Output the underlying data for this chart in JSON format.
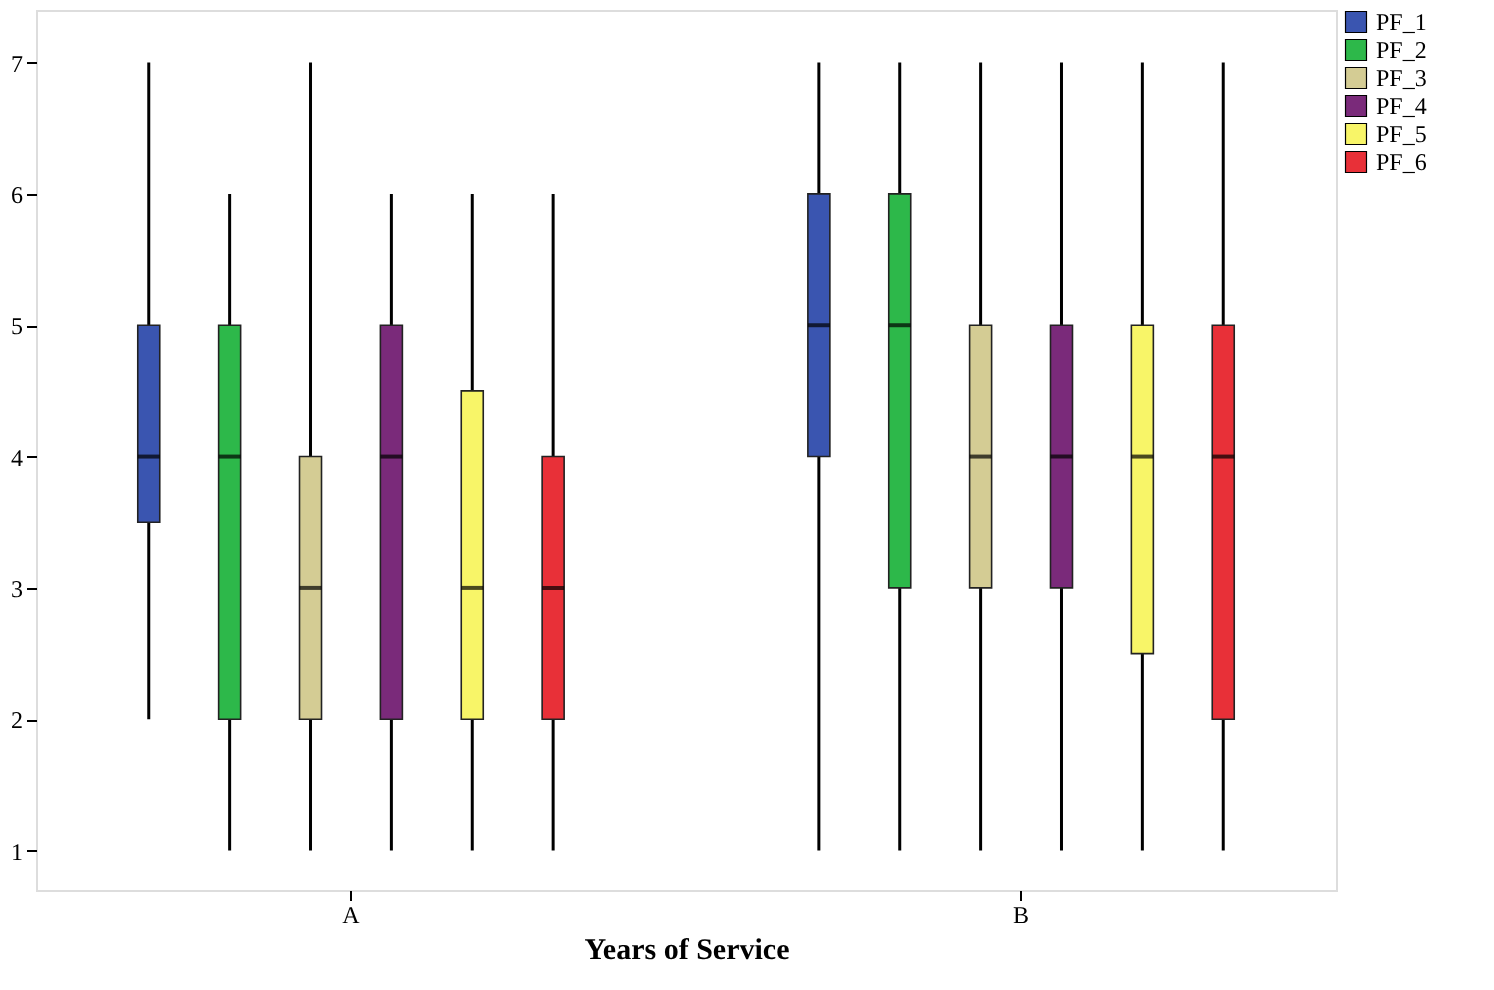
{
  "chart_data": {
    "type": "box",
    "xlabel": "Years of Service",
    "categories": [
      "A",
      "B"
    ],
    "ylim": [
      0.7,
      7.4
    ],
    "yticks": [
      1,
      2,
      3,
      4,
      5,
      6,
      7
    ],
    "grid": false,
    "legend": "top right",
    "series": [
      {
        "name": "PF_1",
        "color": "#3a55b0",
        "boxes": [
          {
            "low": 2,
            "q1": 3.5,
            "median": 4,
            "q3": 5,
            "high": 7
          },
          {
            "low": 1,
            "q1": 4,
            "median": 5,
            "q3": 6,
            "high": 7
          }
        ]
      },
      {
        "name": "PF_2",
        "color": "#2db84a",
        "boxes": [
          {
            "low": 1,
            "q1": 2,
            "median": 4,
            "q3": 5,
            "high": 6
          },
          {
            "low": 1,
            "q1": 3,
            "median": 5,
            "q3": 6,
            "high": 7
          }
        ]
      },
      {
        "name": "PF_3",
        "color": "#d4cc94",
        "boxes": [
          {
            "low": 1,
            "q1": 2,
            "median": 3,
            "q3": 4,
            "high": 7
          },
          {
            "low": 1,
            "q1": 3,
            "median": 4,
            "q3": 5,
            "high": 7
          }
        ]
      },
      {
        "name": "PF_4",
        "color": "#7a2a7a",
        "boxes": [
          {
            "low": 1,
            "q1": 2,
            "median": 4,
            "q3": 5,
            "high": 6
          },
          {
            "low": 1,
            "q1": 3,
            "median": 4,
            "q3": 5,
            "high": 7
          }
        ]
      },
      {
        "name": "PF_5",
        "color": "#f8f568",
        "boxes": [
          {
            "low": 1,
            "q1": 2,
            "median": 3,
            "q3": 4.5,
            "high": 6
          },
          {
            "low": 1,
            "q1": 2.5,
            "median": 4,
            "q3": 5,
            "high": 7
          }
        ]
      },
      {
        "name": "PF_6",
        "color": "#e83038",
        "boxes": [
          {
            "low": 1,
            "q1": 2,
            "median": 3,
            "q3": 4,
            "high": 6
          },
          {
            "low": 1,
            "q1": 2,
            "median": 4,
            "q3": 5,
            "high": 7
          }
        ]
      }
    ]
  }
}
